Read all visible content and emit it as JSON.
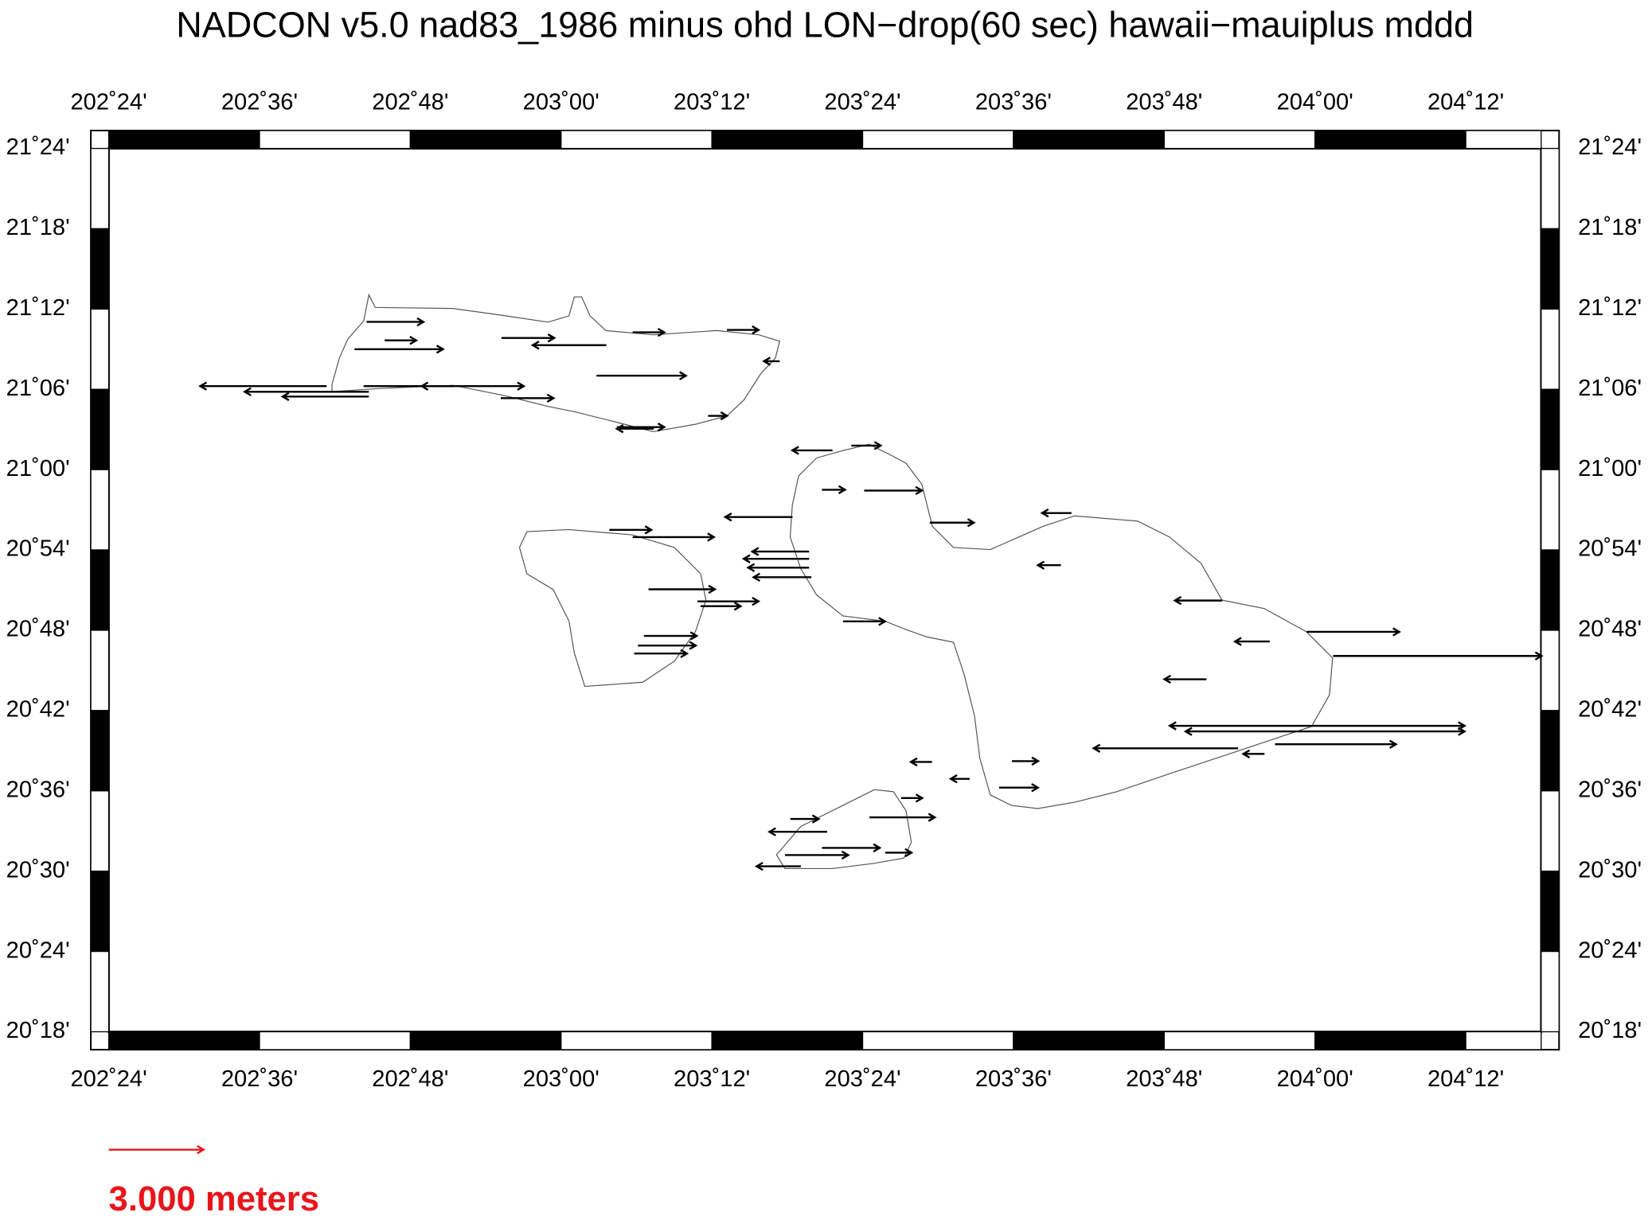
{
  "chart_data": {
    "type": "vector",
    "title": "NADCON v5.0 nad83_1986 minus ohd LON−drop(60 sec) hawaii−mauiplus mddd",
    "xlim": [
      202.4,
      204.3
    ],
    "ylim": [
      20.3,
      21.4
    ],
    "xticks": [
      {
        "value": 202.4,
        "label": "202˚24'"
      },
      {
        "value": 202.6,
        "label": "202˚36'"
      },
      {
        "value": 202.8,
        "label": "202˚48'"
      },
      {
        "value": 203.0,
        "label": "203˚00'"
      },
      {
        "value": 203.2,
        "label": "203˚12'"
      },
      {
        "value": 203.4,
        "label": "203˚24'"
      },
      {
        "value": 203.6,
        "label": "203˚36'"
      },
      {
        "value": 203.8,
        "label": "203˚48'"
      },
      {
        "value": 204.0,
        "label": "204˚00'"
      },
      {
        "value": 204.2,
        "label": "204˚12'"
      }
    ],
    "yticks": [
      {
        "value": 20.3,
        "label": "20˚18'"
      },
      {
        "value": 20.4,
        "label": "20˚24'"
      },
      {
        "value": 20.5,
        "label": "20˚30'"
      },
      {
        "value": 20.6,
        "label": "20˚36'"
      },
      {
        "value": 20.7,
        "label": "20˚42'"
      },
      {
        "value": 20.8,
        "label": "20˚48'"
      },
      {
        "value": 20.9,
        "label": "20˚54'"
      },
      {
        "value": 21.0,
        "label": "21˚00'"
      },
      {
        "value": 21.1,
        "label": "21˚06'"
      },
      {
        "value": 21.2,
        "label": "21˚12'"
      },
      {
        "value": 21.3,
        "label": "21˚18'"
      },
      {
        "value": 21.4,
        "label": "21˚24'"
      }
    ],
    "color": "#000000",
    "x": [
      202.689,
      202.745,
      202.745,
      202.742,
      202.766,
      202.726,
      202.738,
      202.857,
      202.921,
      203.06,
      203.047,
      203.095,
      203.22,
      203.195,
      203.123,
      203.29,
      203.36,
      203.385,
      203.402,
      203.346,
      203.307,
      203.064,
      203.095,
      203.329,
      203.329,
      203.329,
      203.332,
      203.116,
      203.181,
      203.185,
      203.11,
      203.102,
      203.097,
      203.374,
      203.489,
      203.677,
      203.663,
      203.877,
      203.94,
      203.989,
      204.024,
      203.856,
      203.996,
      203.996,
      203.996,
      203.996,
      203.947,
      203.898,
      203.933,
      203.598,
      203.542,
      203.581,
      203.492,
      203.451,
      203.409,
      203.304,
      203.353,
      203.346,
      203.297,
      203.318,
      203.43,
      202.92,
      203.074
    ],
    "y": [
      21.104,
      21.097,
      21.091,
      21.184,
      21.161,
      21.15,
      21.104,
      21.104,
      21.164,
      21.155,
      21.117,
      21.171,
      21.174,
      21.067,
      21.051,
      21.135,
      21.024,
      21.03,
      20.974,
      20.975,
      20.941,
      20.925,
      20.916,
      20.898,
      20.889,
      20.878,
      20.866,
      20.851,
      20.836,
      20.83,
      20.793,
      20.781,
      20.771,
      20.811,
      20.934,
      20.946,
      20.881,
      20.837,
      20.786,
      20.798,
      20.768,
      20.739,
      20.681,
      20.674,
      20.681,
      20.674,
      20.658,
      20.653,
      20.646,
      20.637,
      20.615,
      20.604,
      20.636,
      20.591,
      20.567,
      20.565,
      20.549,
      20.529,
      20.52,
      20.506,
      20.523,
      21.089,
      21.053
    ],
    "u": [
      -4.0,
      -3.93,
      -2.73,
      1.8,
      1.0,
      2.8,
      5.07,
      -1.0,
      1.67,
      -2.33,
      2.83,
      1.0,
      1.0,
      0.6,
      -1.17,
      -0.5,
      -1.27,
      0.93,
      1.83,
      0.73,
      -2.13,
      1.33,
      2.57,
      -1.8,
      -2.07,
      -1.93,
      -1.83,
      2.1,
      1.93,
      1.27,
      1.67,
      1.83,
      1.67,
      1.33,
      1.4,
      -0.93,
      -0.73,
      -1.5,
      -1.1,
      2.93,
      6.6,
      -1.33,
      4.83,
      4.83,
      -4.5,
      -4.0,
      3.83,
      -4.57,
      -0.67,
      0.83,
      -0.6,
      1.23,
      -0.67,
      0.67,
      2.07,
      0.9,
      -1.83,
      1.83,
      2.0,
      -1.4,
      0.83,
      1.67,
      1.5
    ],
    "scale": {
      "value": 3,
      "label": "3.000 meters",
      "color": "#e8151b"
    }
  }
}
